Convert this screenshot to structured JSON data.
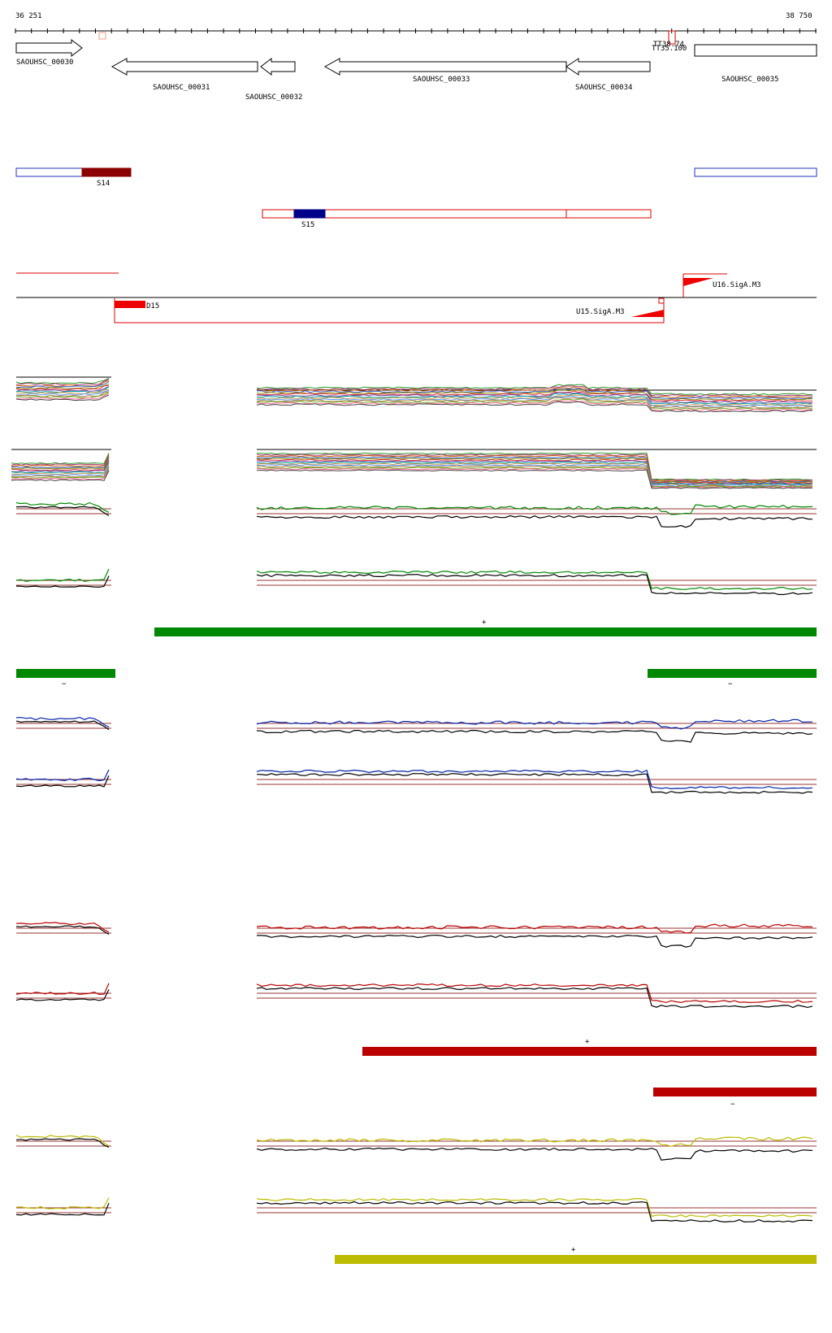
{
  "ruler": {
    "start_label": "36 251",
    "end_label": "38 750"
  },
  "genes": [
    {
      "name": "SAOUHSC_00030"
    },
    {
      "name": "SAOUHSC_00031"
    },
    {
      "name": "SAOUHSC_00032"
    },
    {
      "name": "SAOUHSC_00033"
    },
    {
      "name": "SAOUHSC_00034"
    },
    {
      "name": "SAOUHSC_00035"
    }
  ],
  "terminators": {
    "label_a": "TT38.74",
    "label_b": "TT35.100"
  },
  "segments": {
    "s14": "S14",
    "s15": "S15"
  },
  "regulation": {
    "d15": "D15",
    "u15": "U15.SigA.M3",
    "u16": "U16.SigA.M3"
  },
  "strand_marks": {
    "plus": "+",
    "minus": "−"
  },
  "colors": {
    "green": "#008800",
    "blue": "#0022aa",
    "red": "#bb0000",
    "yellow": "#bbbb00",
    "darkred": "#8b0000",
    "navy": "#000088",
    "segment_blue": "#2233bb",
    "segment_red": "#dd0000",
    "ref_line": "#993333"
  },
  "tracks": [
    {
      "name": "multi-condition-plus",
      "color": "multi"
    },
    {
      "name": "multi-condition-minus",
      "color": "multi"
    },
    {
      "name": "green-plus",
      "color": "green"
    },
    {
      "name": "green-minus",
      "color": "green"
    },
    {
      "name": "blue-plus",
      "color": "blue"
    },
    {
      "name": "blue-minus",
      "color": "blue"
    },
    {
      "name": "red-plus",
      "color": "red"
    },
    {
      "name": "red-minus",
      "color": "red"
    },
    {
      "name": "yellow-plus",
      "color": "yellow"
    },
    {
      "name": "yellow-minus",
      "color": "yellow"
    }
  ]
}
